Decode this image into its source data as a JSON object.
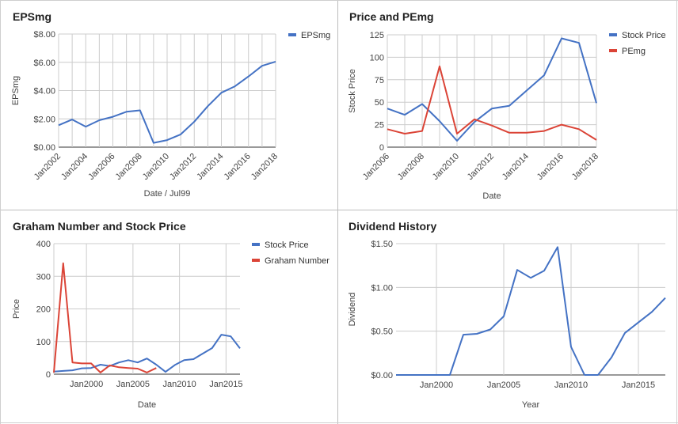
{
  "chart_data": [
    {
      "type": "line",
      "title": "EPSmg",
      "xlabel": "Date / Jul99",
      "ylabel": "EPSmg",
      "ylim": [
        0,
        8
      ],
      "yticks": [
        "$0.00",
        "$2.00",
        "$4.00",
        "$6.00",
        "$8.00"
      ],
      "xticks": [
        "Jan2002",
        "Jan2004",
        "Jan2006",
        "Jan2008",
        "Jan2010",
        "Jan2012",
        "Jan2014",
        "Jan2016",
        "Jan2018"
      ],
      "grid": true,
      "legend": "right",
      "series": [
        {
          "name": "EPSmg",
          "color": "#4472c4",
          "x": [
            2002,
            2003,
            2004,
            2005,
            2006,
            2007,
            2008,
            2009,
            2010,
            2011,
            2012,
            2013,
            2014,
            2015,
            2016,
            2017,
            2018
          ],
          "values": [
            1.55,
            1.95,
            1.45,
            1.9,
            2.15,
            2.5,
            2.6,
            0.3,
            0.5,
            0.9,
            1.8,
            2.9,
            3.85,
            4.3,
            5.0,
            5.75,
            6.05
          ]
        }
      ]
    },
    {
      "type": "line",
      "title": "Price and PEmg",
      "xlabel": "Date",
      "ylabel": "Stock Price",
      "ylim": [
        0,
        125
      ],
      "yticks": [
        "0",
        "25",
        "50",
        "75",
        "100",
        "125"
      ],
      "xticks": [
        "Jan2006",
        "Jan2008",
        "Jan2010",
        "Jan2012",
        "Jan2014",
        "Jan2016",
        "Jan2018"
      ],
      "grid": true,
      "legend": "right",
      "series": [
        {
          "name": "Stock Price",
          "color": "#4472c4",
          "x": [
            2006,
            2007,
            2008,
            2009,
            2010,
            2011,
            2012,
            2013,
            2014,
            2015,
            2016,
            2017,
            2018
          ],
          "values": [
            43,
            36,
            48,
            29,
            7,
            28,
            43,
            46,
            63,
            80,
            121,
            116,
            49
          ]
        },
        {
          "name": "PEmg",
          "color": "#db4437",
          "x": [
            2006,
            2007,
            2008,
            2009,
            2010,
            2011,
            2012,
            2013,
            2014,
            2015,
            2016,
            2017,
            2018
          ],
          "values": [
            20,
            15,
            18,
            90,
            15,
            31,
            24,
            16,
            16,
            18,
            25,
            20,
            8
          ]
        }
      ]
    },
    {
      "type": "line",
      "title": "Graham Number and Stock Price",
      "xlabel": "Date",
      "ylabel": "Price",
      "ylim": [
        0,
        400
      ],
      "yticks": [
        "0",
        "100",
        "200",
        "300",
        "400"
      ],
      "xticks": [
        "Jan2000",
        "Jan2005",
        "Jan2010",
        "Jan2015"
      ],
      "grid": true,
      "legend": "right",
      "series": [
        {
          "name": "Stock Price",
          "color": "#4472c4",
          "x": [
            1996.5,
            1997.5,
            1998.5,
            1999.5,
            2000.5,
            2001.5,
            2002.5,
            2003.5,
            2004.5,
            2005.5,
            2006.5,
            2007.5,
            2008.5,
            2009.5,
            2010.5,
            2011.5,
            2012.5,
            2013.5,
            2014.5,
            2015.5,
            2016.5
          ],
          "values": [
            8,
            10,
            12,
            18,
            19,
            29,
            25,
            36,
            43,
            36,
            48,
            29,
            7,
            28,
            43,
            46,
            63,
            80,
            121,
            116,
            79
          ]
        },
        {
          "name": "Graham Number",
          "color": "#db4437",
          "x": [
            1996.5,
            1997.5,
            1998.5,
            1999.5,
            2000.5,
            2001.5,
            2002.5,
            2003.5,
            2004.5,
            2005.5,
            2006.5,
            2007.5
          ],
          "values": [
            5,
            340,
            36,
            33,
            33,
            5,
            27,
            21,
            19,
            17,
            5,
            19
          ]
        }
      ]
    },
    {
      "type": "line",
      "title": "Dividend History",
      "xlabel": "Year",
      "ylabel": "Dividend",
      "ylim": [
        0,
        1.5
      ],
      "yticks": [
        "$0.00",
        "$0.50",
        "$1.00",
        "$1.50"
      ],
      "xticks": [
        "Jan2000",
        "Jan2005",
        "Jan2010",
        "Jan2015"
      ],
      "grid": true,
      "legend": "none",
      "series": [
        {
          "color": "#4472c4",
          "x": [
            1997,
            1998,
            1999,
            2000,
            2001,
            2002,
            2003,
            2004,
            2005,
            2006,
            2007,
            2008,
            2009,
            2010,
            2011,
            2012,
            2013,
            2014,
            2015,
            2016,
            2017
          ],
          "values": [
            0,
            0,
            0,
            0,
            0,
            0.46,
            0.47,
            0.52,
            0.67,
            1.2,
            1.11,
            1.19,
            1.46,
            0.32,
            0,
            0,
            0.2,
            0.48,
            0.6,
            0.72,
            0.88
          ]
        }
      ]
    }
  ]
}
